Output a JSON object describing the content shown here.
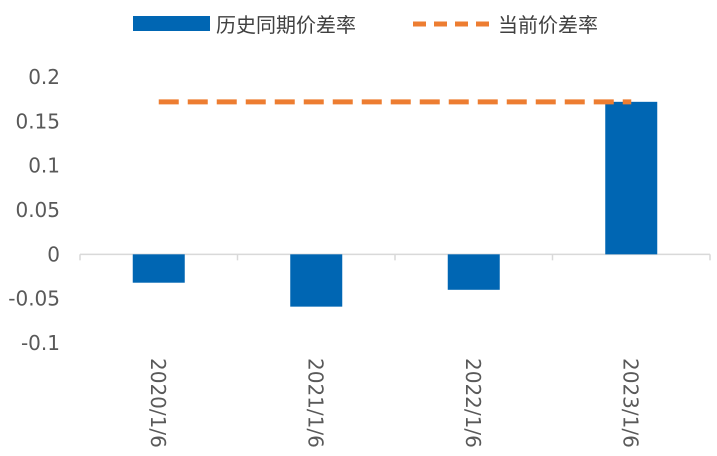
{
  "chart_data": {
    "type": "bar",
    "categories": [
      "2020/1/6",
      "2021/1/6",
      "2022/1/6",
      "2023/1/6"
    ],
    "series": [
      {
        "name": "历史同期价差率",
        "type": "bar",
        "values": [
          -0.032,
          -0.059,
          -0.04,
          0.172
        ],
        "color": "#0066B3"
      },
      {
        "name": "当前价差率",
        "type": "line",
        "style": "dashed",
        "values": [
          0.172,
          0.172,
          0.172,
          0.172
        ],
        "color": "#ED7D31"
      }
    ],
    "ylim": [
      -0.1,
      0.2
    ],
    "yticks": [
      0.2,
      0.15,
      0.1,
      0.05,
      0,
      -0.05,
      -0.1
    ],
    "ytick_labels": [
      "0.2",
      "0.15",
      "0.1",
      "0.05",
      "0",
      "-0.05",
      "-0.1"
    ],
    "title": "",
    "xlabel": "",
    "ylabel": "",
    "legend_position": "top",
    "grid": false
  }
}
